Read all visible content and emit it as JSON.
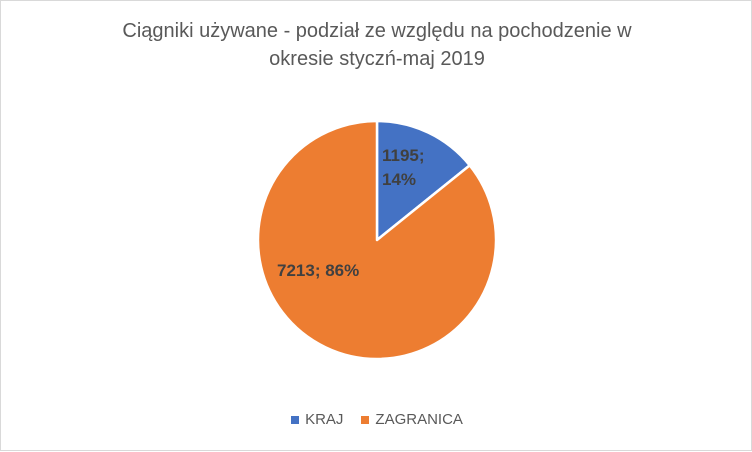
{
  "chart_data": {
    "type": "pie",
    "title_lines": [
      "Ciągniki używane - podział ze względu na pochodzenie w",
      "okresie styczń-maj 2019"
    ],
    "categories": [
      "KRAJ",
      "ZAGRANICA"
    ],
    "values": [
      1195,
      7213
    ],
    "percentages": [
      "14%",
      "86%"
    ],
    "data_labels": [
      {
        "line1": "1195;",
        "line2": "14%"
      },
      {
        "line1": "7213; 86%",
        "line2": ""
      }
    ],
    "colors": [
      "#4472c4",
      "#ed7d31"
    ],
    "legend_position": "bottom"
  }
}
